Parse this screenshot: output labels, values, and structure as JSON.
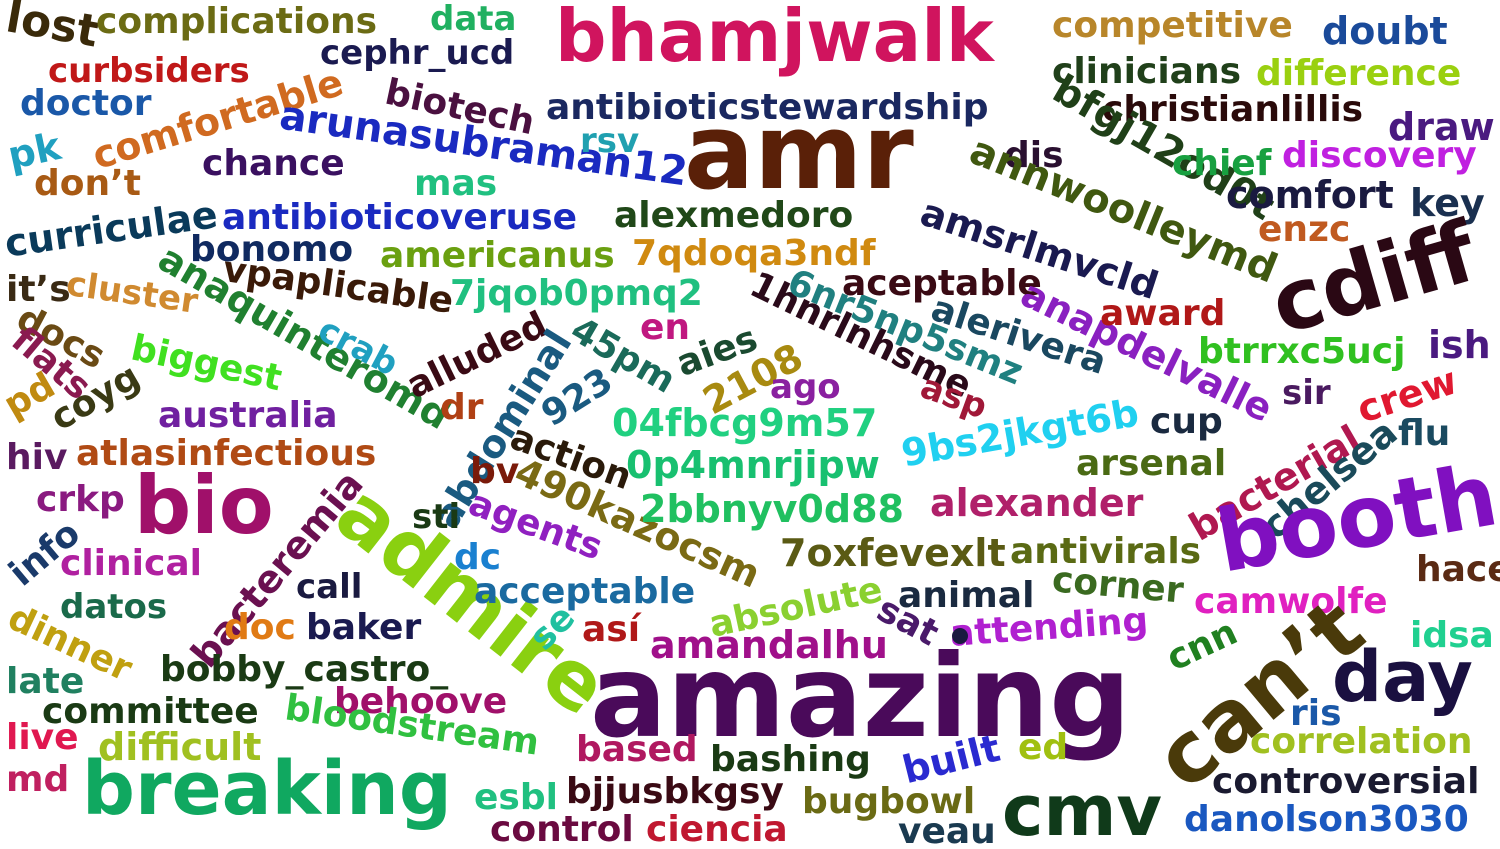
{
  "words": [
    {
      "text": "lost",
      "color": "#3a2a0a"
    },
    {
      "text": "complications",
      "color": "#6b6b14"
    },
    {
      "text": "data",
      "color": "#20b060"
    },
    {
      "text": "bhamjwalk",
      "color": "#d0145e"
    },
    {
      "text": "competitive",
      "color": "#b8862a"
    },
    {
      "text": "doubt",
      "color": "#1a4a9a"
    },
    {
      "text": "cephr_ucd",
      "color": "#1a1a50"
    },
    {
      "text": "curbsiders",
      "color": "#c01818"
    },
    {
      "text": "clinicians",
      "color": "#20401a"
    },
    {
      "text": "difference",
      "color": "#9ad010"
    },
    {
      "text": "doctor",
      "color": "#1a58a8"
    },
    {
      "text": "comfortable",
      "color": "#d06a20"
    },
    {
      "text": "biotech",
      "color": "#4a1040"
    },
    {
      "text": "antibioticstewardship",
      "color": "#1a2860"
    },
    {
      "text": "christianlillis",
      "color": "#2a0a0a"
    },
    {
      "text": "amr",
      "color": "#5a2008"
    },
    {
      "text": "bfgj12od0t",
      "color": "#204018"
    },
    {
      "text": "draw",
      "color": "#4a1a80"
    },
    {
      "text": "pk",
      "color": "#20a0c0"
    },
    {
      "text": "arunasubraman12",
      "color": "#1a2ac0"
    },
    {
      "text": "rsv",
      "color": "#20a0b0"
    },
    {
      "text": "dis",
      "color": "#2a1030"
    },
    {
      "text": "chief",
      "color": "#18a040"
    },
    {
      "text": "discovery",
      "color": "#c020e0"
    },
    {
      "text": "chance",
      "color": "#3a1060"
    },
    {
      "text": "mas",
      "color": "#20c080"
    },
    {
      "text": "don’t",
      "color": "#a85a14"
    },
    {
      "text": "annwoolleymd",
      "color": "#405810"
    },
    {
      "text": "comfort",
      "color": "#1a1a40"
    },
    {
      "text": "key",
      "color": "#1a3050"
    },
    {
      "text": "curriculae",
      "color": "#0a3a5a"
    },
    {
      "text": "antibioticoveruse",
      "color": "#1a2ac0"
    },
    {
      "text": "alexmedoro",
      "color": "#204818"
    },
    {
      "text": "amsrlmvcld",
      "color": "#1a1a50"
    },
    {
      "text": "enzc",
      "color": "#c05a20"
    },
    {
      "text": "bonomo",
      "color": "#102a60"
    },
    {
      "text": "americanus",
      "color": "#6aa010"
    },
    {
      "text": "7qdoqa3ndf",
      "color": "#d08a10"
    },
    {
      "text": "cdiff",
      "color": "#2a0814"
    },
    {
      "text": "it’s",
      "color": "#3a2a14"
    },
    {
      "text": "cluster",
      "color": "#d08a30"
    },
    {
      "text": "anaquinteromd",
      "color": "#208030"
    },
    {
      "text": "vpaplicable",
      "color": "#3a1a08"
    },
    {
      "text": "7jqob0pmq2",
      "color": "#20c080"
    },
    {
      "text": "1hnrlnhsme",
      "color": "#2a0a1a"
    },
    {
      "text": "6nr5np5smz",
      "color": "#208080"
    },
    {
      "text": "aceptable",
      "color": "#3a0a14"
    },
    {
      "text": "docs",
      "color": "#6a4a14"
    },
    {
      "text": "alerivera",
      "color": "#1a4860"
    },
    {
      "text": "anapdelvalle",
      "color": "#8a20c0"
    },
    {
      "text": "award",
      "color": "#b01818"
    },
    {
      "text": "flats",
      "color": "#8a1a50"
    },
    {
      "text": "crab",
      "color": "#20a0c0"
    },
    {
      "text": "en",
      "color": "#c01880"
    },
    {
      "text": "btrrxc5ucj",
      "color": "#30c020"
    },
    {
      "text": "ish",
      "color": "#4a1a80"
    },
    {
      "text": "pd",
      "color": "#c08a10"
    },
    {
      "text": "coyg",
      "color": "#3a3a14"
    },
    {
      "text": "biggest",
      "color": "#40e020"
    },
    {
      "text": "alluded",
      "color": "#3a0a14"
    },
    {
      "text": "abdominal",
      "color": "#1a5a80"
    },
    {
      "text": "45pm",
      "color": "#1a6a5a"
    },
    {
      "text": "aies",
      "color": "#1a4a30"
    },
    {
      "text": "2108",
      "color": "#a88a10"
    },
    {
      "text": "ago",
      "color": "#8a20a0"
    },
    {
      "text": "asp",
      "color": "#a01838"
    },
    {
      "text": "sir",
      "color": "#4a1a60"
    },
    {
      "text": "crew",
      "color": "#e01830"
    },
    {
      "text": "australia",
      "color": "#7020a0"
    },
    {
      "text": "dr",
      "color": "#b04014"
    },
    {
      "text": "923",
      "color": "#1a5a80"
    },
    {
      "text": "04fbcg9m57",
      "color": "#20d080"
    },
    {
      "text": "9bs2jkgt6b",
      "color": "#20d0f0"
    },
    {
      "text": "cup",
      "color": "#1a2a40"
    },
    {
      "text": "flu",
      "color": "#1a4a60"
    },
    {
      "text": "hiv",
      "color": "#5a1a60"
    },
    {
      "text": "atlasinfectious",
      "color": "#b04a14"
    },
    {
      "text": "action",
      "color": "#2a1a0a"
    },
    {
      "text": "0p4mnrjipw",
      "color": "#18c070"
    },
    {
      "text": "arsenal",
      "color": "#4a6a14"
    },
    {
      "text": "bacterial",
      "color": "#b01850"
    },
    {
      "text": "chelsea",
      "color": "#1a4a5a"
    },
    {
      "text": "crkp",
      "color": "#8a1a80"
    },
    {
      "text": "bio",
      "color": "#a0106a"
    },
    {
      "text": "bacteremia",
      "color": "#6a1050"
    },
    {
      "text": "bv",
      "color": "#7a1a0a"
    },
    {
      "text": "490kazocsm",
      "color": "#7a6a14"
    },
    {
      "text": "2bbnyv0d88",
      "color": "#20c060"
    },
    {
      "text": "alexander",
      "color": "#b0206a"
    },
    {
      "text": "booth",
      "color": "#8010c0"
    },
    {
      "text": "info",
      "color": "#1a3a6a"
    },
    {
      "text": "admire",
      "color": "#8ad010"
    },
    {
      "text": "sti",
      "color": "#1a3a14"
    },
    {
      "text": "agents",
      "color": "#9020c0"
    },
    {
      "text": "clinical",
      "color": "#b020a0"
    },
    {
      "text": "dc",
      "color": "#1a80d0"
    },
    {
      "text": "7oxfevexlt",
      "color": "#5a5a14"
    },
    {
      "text": "antivirals",
      "color": "#5a6a14"
    },
    {
      "text": "hace",
      "color": "#5a2a14"
    },
    {
      "text": "call",
      "color": "#1a1a40"
    },
    {
      "text": "acceptable",
      "color": "#1a6aa0"
    },
    {
      "text": "animal",
      "color": "#1a2a40"
    },
    {
      "text": "corner",
      "color": "#3a6a20"
    },
    {
      "text": "datos",
      "color": "#1a6a4a"
    },
    {
      "text": "absolute",
      "color": "#8ad030"
    },
    {
      "text": "camwolfe",
      "color": "#e020c0"
    },
    {
      "text": "dinner",
      "color": "#c0a010"
    },
    {
      "text": "doc",
      "color": "#e07a14"
    },
    {
      "text": "baker",
      "color": "#1a1a50"
    },
    {
      "text": "se",
      "color": "#20c0a0"
    },
    {
      "text": "así",
      "color": "#b01818"
    },
    {
      "text": "sat",
      "color": "#4a1a6a"
    },
    {
      "text": "attending",
      "color": "#b020d0"
    },
    {
      "text": "cnn",
      "color": "#208020"
    },
    {
      "text": "idsa",
      "color": "#20d090"
    },
    {
      "text": "amandalhu",
      "color": "#a0108a"
    },
    {
      "text": "can’t",
      "color": "#4a3a0a"
    },
    {
      "text": "late",
      "color": "#208060"
    },
    {
      "text": "bobby_castro_",
      "color": "#1a3a14"
    },
    {
      "text": "day",
      "color": "#1a1040"
    },
    {
      "text": "amazing",
      "color": "#4a0a5a"
    },
    {
      "text": "behoove",
      "color": "#a0106a"
    },
    {
      "text": "committee",
      "color": "#1a3a14"
    },
    {
      "text": "ris",
      "color": "#1a58a8"
    },
    {
      "text": "live",
      "color": "#e01850"
    },
    {
      "text": "difficult",
      "color": "#a0c020"
    },
    {
      "text": "bloodstream",
      "color": "#30c040"
    },
    {
      "text": "ed",
      "color": "#a0c010"
    },
    {
      "text": "correlation",
      "color": "#a0c020"
    },
    {
      "text": "based",
      "color": "#b01860"
    },
    {
      "text": "built",
      "color": "#2a2ad0"
    },
    {
      "text": "md",
      "color": "#c02060"
    },
    {
      "text": "bashing",
      "color": "#1a3a14"
    },
    {
      "text": "controversial",
      "color": "#1a1a30"
    },
    {
      "text": "breaking",
      "color": "#10a860"
    },
    {
      "text": "esbl",
      "color": "#20c080"
    },
    {
      "text": "bjjusbkgsy",
      "color": "#3a0a14"
    },
    {
      "text": "bugbowl",
      "color": "#6a6a14"
    },
    {
      "text": "cmv",
      "color": "#103a1a"
    },
    {
      "text": "danolson3030",
      "color": "#1a58c0"
    },
    {
      "text": "control",
      "color": "#6a0a40"
    },
    {
      "text": "ciencia",
      "color": "#c01830"
    },
    {
      "text": "veau",
      "color": "#1a3a50"
    }
  ]
}
